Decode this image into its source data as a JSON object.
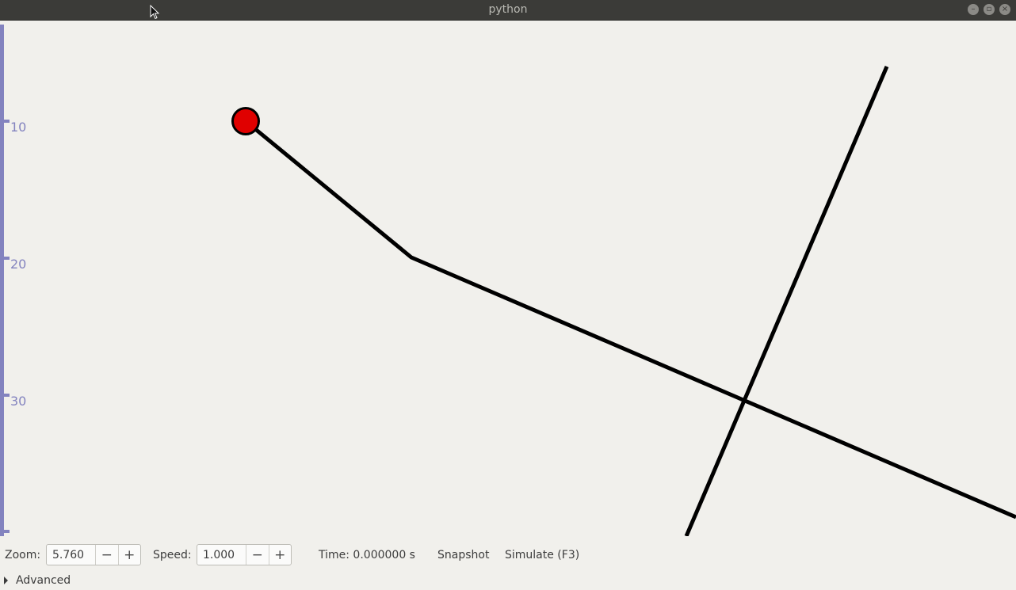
{
  "window": {
    "title": "python",
    "minimize_icon": "minimize-icon",
    "maximize_icon": "maximize-icon",
    "close_icon": "close-icon"
  },
  "ruler": {
    "color": "#8383bf",
    "tick_labels": [
      "10",
      "20",
      "30"
    ]
  },
  "scene": {
    "line_color": "#000000",
    "ball_color": "#e00000"
  },
  "toolbar": {
    "zoom_label": "Zoom:",
    "zoom_value": "5.760",
    "speed_label": "Speed:",
    "speed_value": "1.000",
    "decrement_symbol": "−",
    "increment_symbol": "+",
    "time_text": "Time: 0.000000 s",
    "snapshot_label": "Snapshot",
    "simulate_label": "Simulate (F3)"
  },
  "expander": {
    "label": "Advanced"
  }
}
